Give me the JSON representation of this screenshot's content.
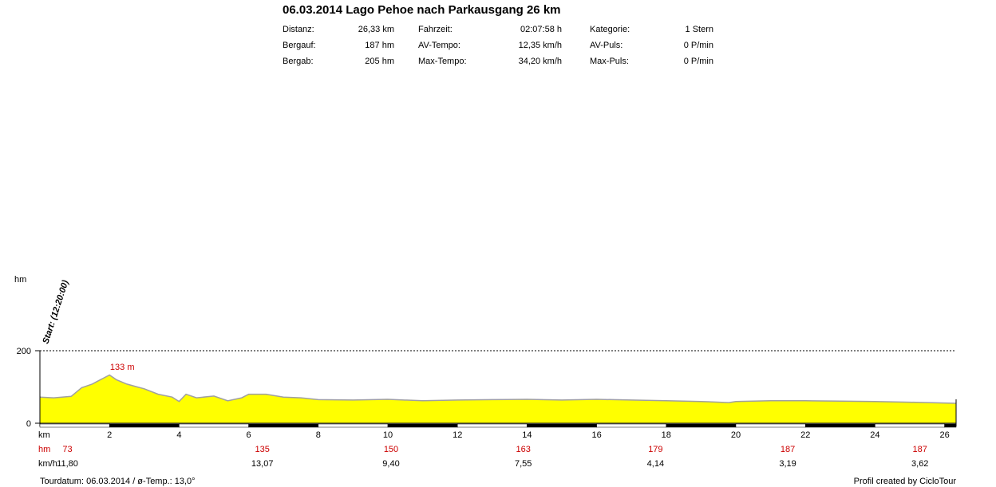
{
  "header": {
    "title": "06.03.2014 Lago Pehoe nach Parkausgang 26 km",
    "stats": [
      [
        {
          "label": "Distanz:",
          "value": "26,33 km"
        },
        {
          "label": "Fahrzeit:",
          "value": "02:07:58 h"
        },
        {
          "label": "Kategorie:",
          "value": "1 Stern"
        }
      ],
      [
        {
          "label": "Bergauf:",
          "value": "187 hm"
        },
        {
          "label": "AV-Tempo:",
          "value": "12,35 km/h"
        },
        {
          "label": "AV-Puls:",
          "value": "0 P/min"
        }
      ],
      [
        {
          "label": "Bergab:",
          "value": "205 hm"
        },
        {
          "label": "Max-Tempo:",
          "value": "34,20 km/h"
        },
        {
          "label": "Max-Puls:",
          "value": "0 P/min"
        }
      ]
    ]
  },
  "footer": {
    "left": "Tourdatum: 06.03.2014  /  ø-Temp.: 13,0°",
    "right": "Profil created by CicloTour"
  },
  "colors": {
    "fill": "#ffff00",
    "outline": "#a0a0a0",
    "red": "#cc0000"
  },
  "chart_data": {
    "type": "area",
    "ylabel": "hm",
    "xlabel": "km",
    "ylim": [
      0,
      200
    ],
    "xlim": [
      0,
      26.33
    ],
    "y_ticks": [
      "200",
      "0"
    ],
    "x_ticks": [
      2,
      4,
      6,
      8,
      10,
      12,
      14,
      16,
      18,
      20,
      22,
      24,
      26
    ],
    "start_label": "Start: (12:20:00)",
    "peak_label": "133 m",
    "peak": {
      "x": 2.0,
      "y": 133
    },
    "series": [
      {
        "x": [
          0,
          0.4,
          0.9,
          1.2,
          1.5,
          1.8,
          2.0,
          2.2,
          2.5,
          2.8,
          3.0,
          3.4,
          3.8,
          4.0,
          4.2,
          4.5,
          5.0,
          5.4,
          5.8,
          6.0,
          6.5,
          7.0,
          7.5,
          8.0,
          9.0,
          10.0,
          11.0,
          12.0,
          13.0,
          14.0,
          15.0,
          16.0,
          17.0,
          18.0,
          19.0,
          19.8,
          20.0,
          21.0,
          22.0,
          23.0,
          24.0,
          25.0,
          26.33
        ],
        "y": [
          72,
          70,
          74,
          98,
          108,
          123,
          133,
          120,
          108,
          100,
          95,
          80,
          72,
          60,
          80,
          70,
          75,
          62,
          70,
          80,
          80,
          72,
          70,
          65,
          64,
          66,
          62,
          64,
          65,
          66,
          64,
          66,
          64,
          62,
          60,
          57,
          60,
          62,
          62,
          61,
          60,
          58,
          55
        ]
      }
    ]
  },
  "table": {
    "row_labels": {
      "km": "km",
      "hm": "hm",
      "kmh": "km/h"
    },
    "hm": [
      {
        "km": 0.7,
        "value": "73"
      },
      {
        "km": 6.3,
        "value": "135"
      },
      {
        "km": 10.0,
        "value": "150"
      },
      {
        "km": 13.8,
        "value": "163"
      },
      {
        "km": 17.6,
        "value": "179"
      },
      {
        "km": 21.4,
        "value": "187"
      },
      {
        "km": 25.2,
        "value": "187"
      }
    ],
    "kmh": [
      {
        "km": 0.7,
        "value": "11,80"
      },
      {
        "km": 6.3,
        "value": "13,07"
      },
      {
        "km": 10.0,
        "value": "9,40"
      },
      {
        "km": 13.8,
        "value": "7,55"
      },
      {
        "km": 17.6,
        "value": "4,14"
      },
      {
        "km": 21.4,
        "value": "3,19"
      },
      {
        "km": 25.2,
        "value": "3,62"
      }
    ]
  }
}
